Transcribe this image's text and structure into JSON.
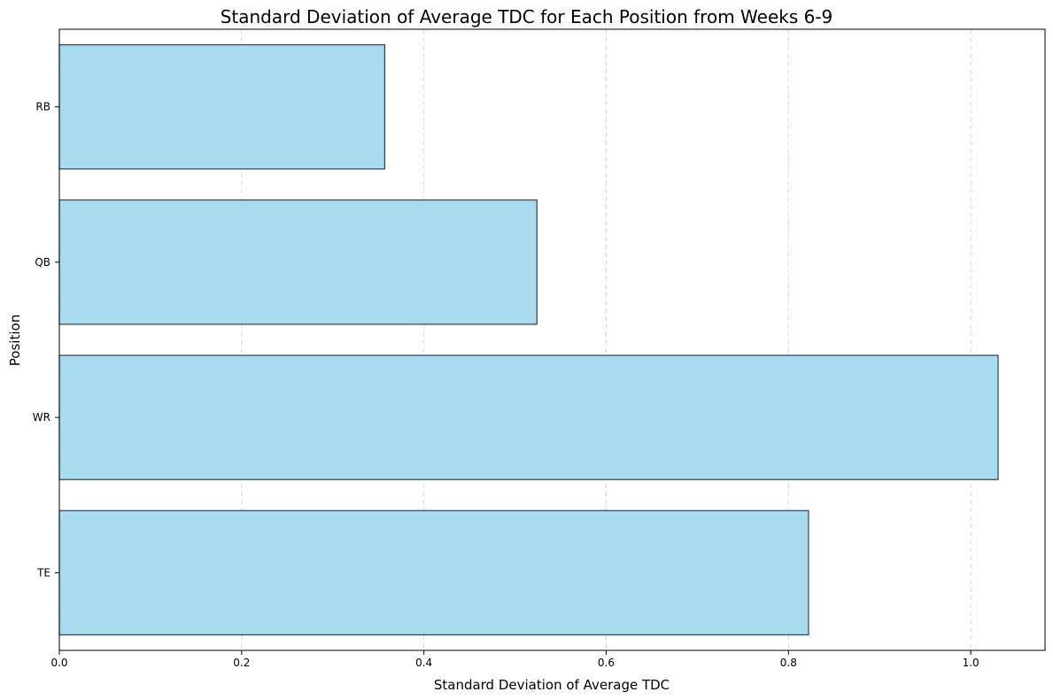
{
  "chart_data": {
    "type": "bar",
    "orientation": "horizontal",
    "title": "Standard Deviation of Average TDC for Each Position from Weeks 6-9",
    "xlabel": "Standard Deviation of Average TDC",
    "ylabel": "Position",
    "categories": [
      "RB",
      "QB",
      "WR",
      "TE"
    ],
    "values": [
      0.357,
      0.524,
      1.03,
      0.822
    ],
    "xlim": [
      0,
      1.0815
    ],
    "xticks": [
      0.0,
      0.2,
      0.4,
      0.6,
      0.8,
      1.0
    ],
    "xtick_labels": [
      "0.0",
      "0.2",
      "0.4",
      "0.6",
      "0.8",
      "1.0"
    ],
    "grid": {
      "x": true,
      "y": false,
      "style": "dashed"
    },
    "legend": null,
    "colors": {
      "bar_fill": "#a9dbee",
      "bar_edge": "#2f4050",
      "grid": "#d6d6d6",
      "axis": "#000000"
    }
  }
}
